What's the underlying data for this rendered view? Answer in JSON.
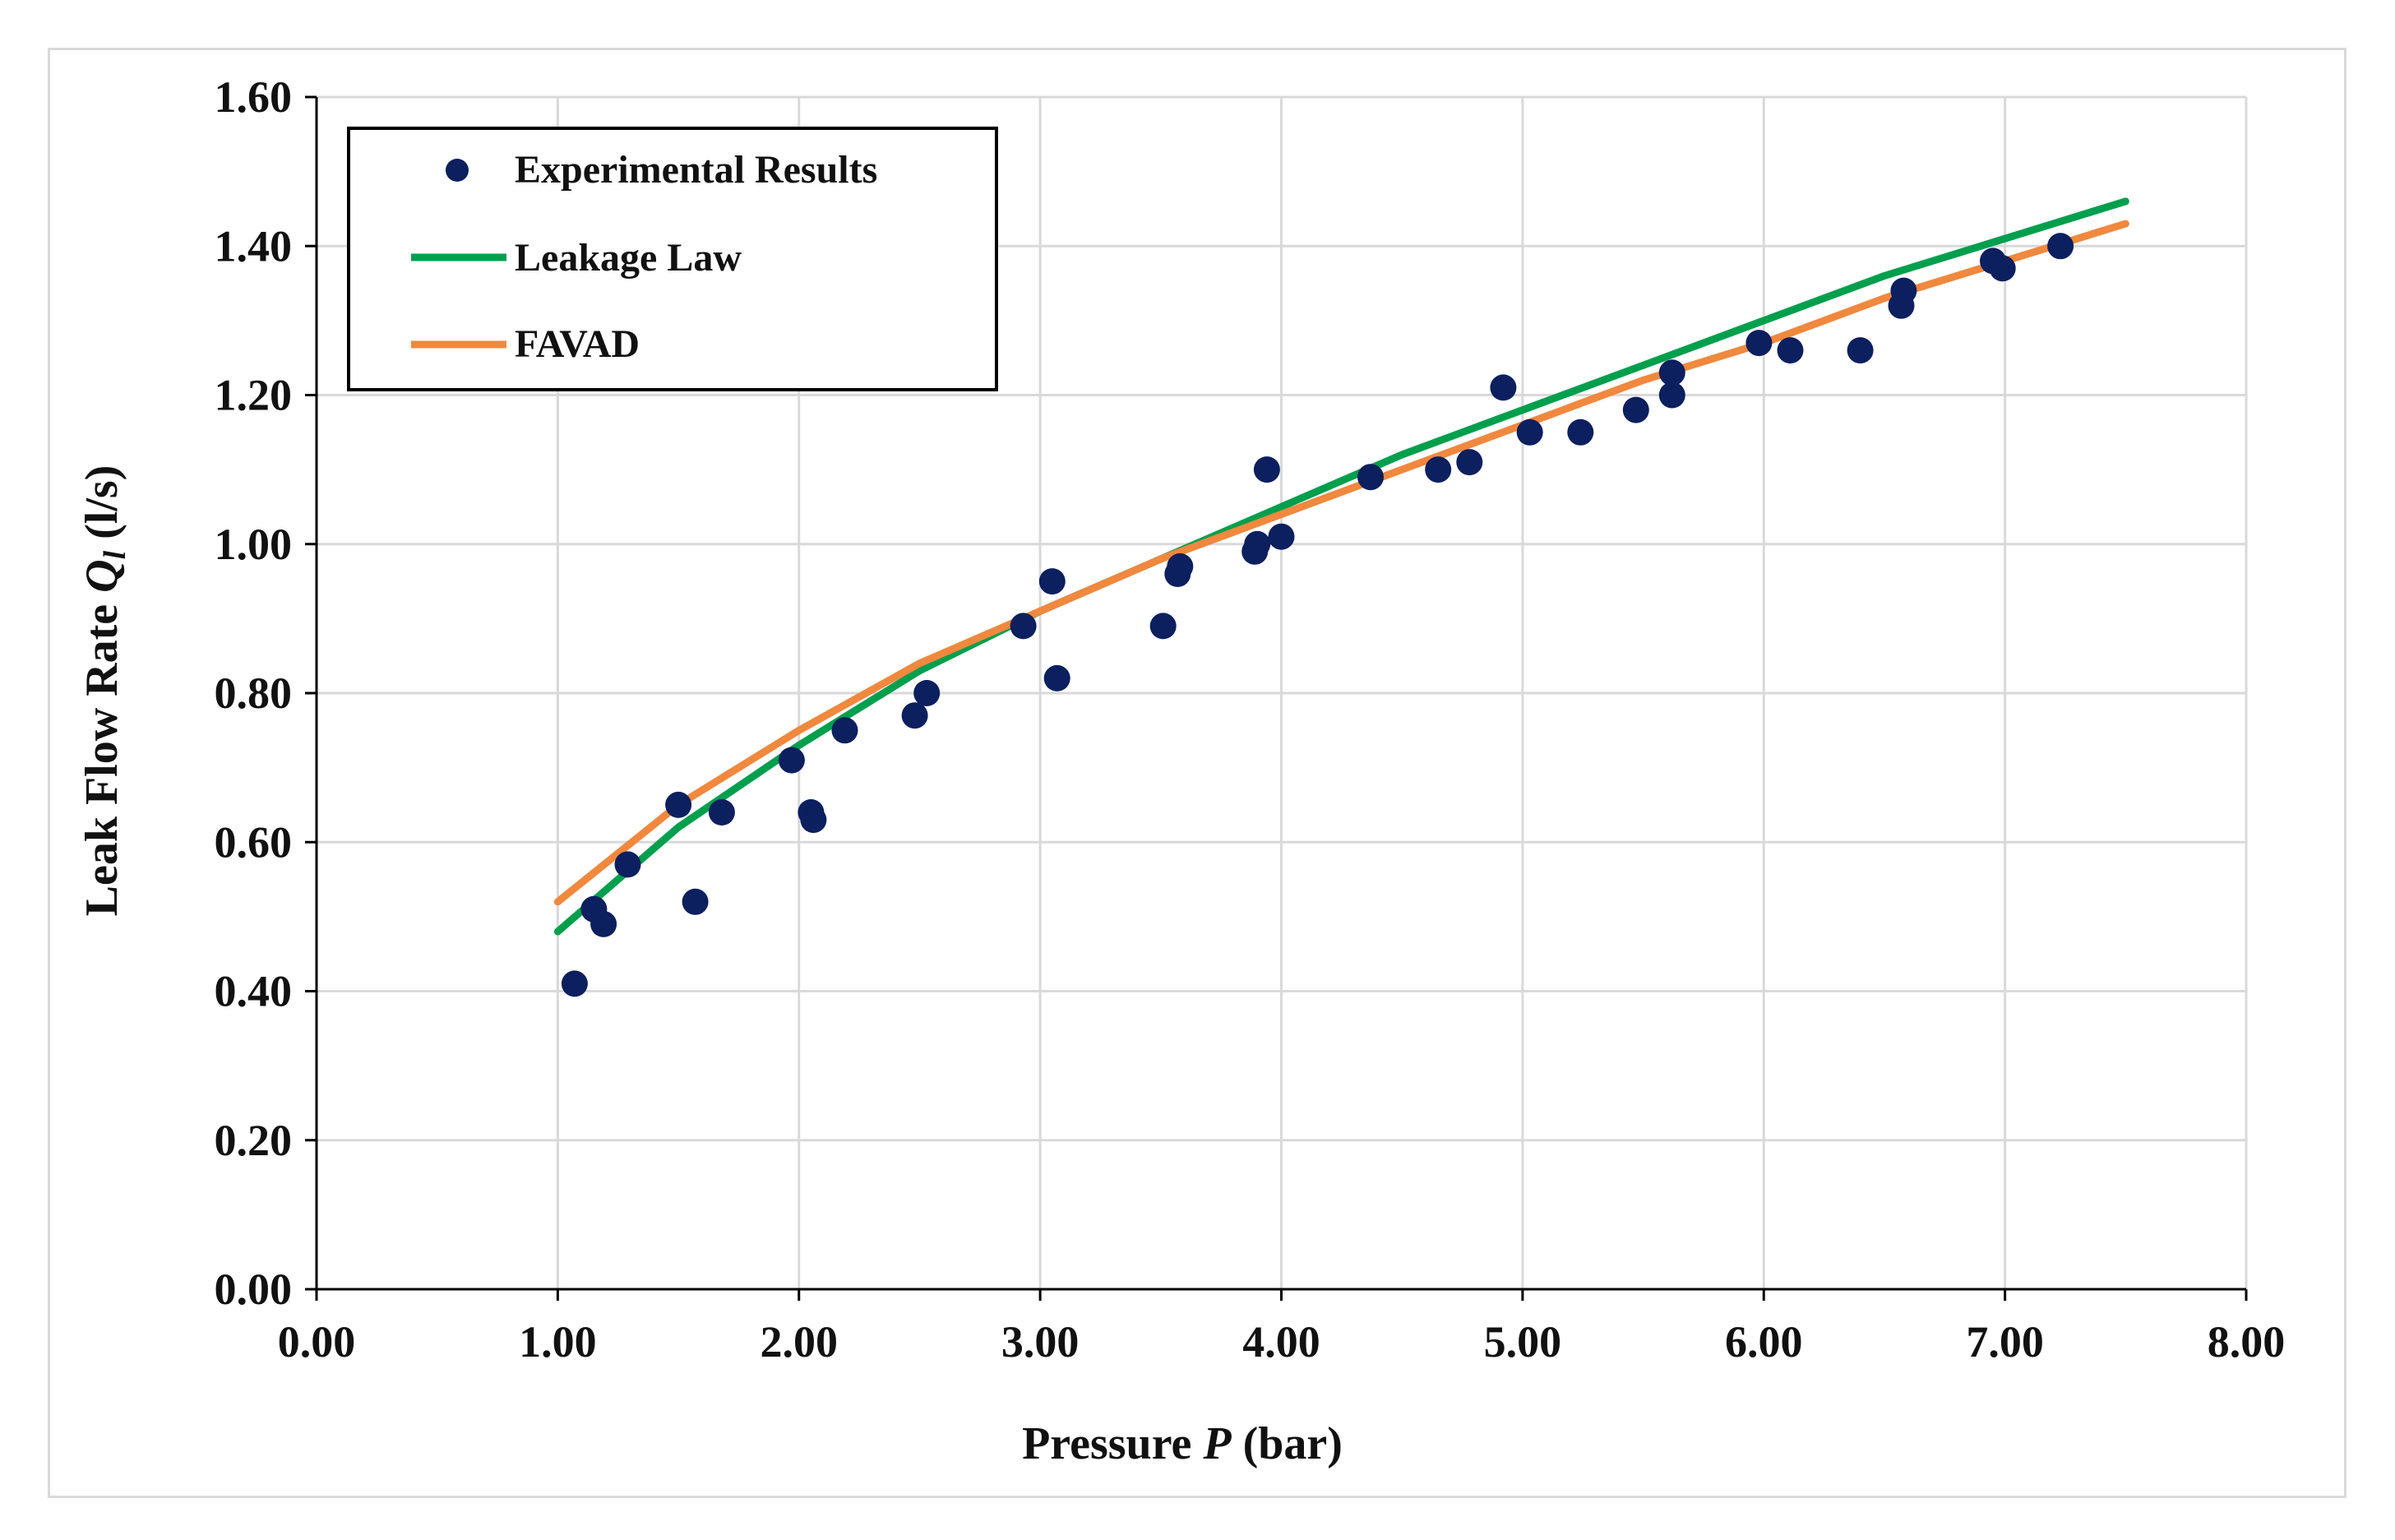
{
  "chart_data": {
    "type": "scatter",
    "xlabel": "Pressure P (bar)",
    "xlabel_parts": {
      "before": "Pressure ",
      "var": "P",
      "after": " (bar)"
    },
    "ylabel": "Leak Flow Rate Ql (l/s)",
    "ylabel_parts": {
      "before": "Leak Flow Rate ",
      "var": "Q",
      "sub": "l",
      "after": " (l/s)"
    },
    "xlim": [
      0,
      8
    ],
    "ylim": [
      0,
      1.6
    ],
    "x_ticks": [
      "0.00",
      "1.00",
      "2.00",
      "3.00",
      "4.00",
      "5.00",
      "6.00",
      "7.00",
      "8.00"
    ],
    "y_ticks": [
      "0.00",
      "0.20",
      "0.40",
      "0.60",
      "0.80",
      "1.00",
      "1.20",
      "1.40",
      "1.60"
    ],
    "grid": true,
    "legend_position": "top-left",
    "series": [
      {
        "name": "Experimental Results",
        "kind": "scatter",
        "color": "#0c1f5e",
        "points": [
          [
            1.07,
            0.41
          ],
          [
            1.15,
            0.51
          ],
          [
            1.19,
            0.49
          ],
          [
            1.29,
            0.57
          ],
          [
            1.5,
            0.65
          ],
          [
            1.57,
            0.52
          ],
          [
            1.68,
            0.64
          ],
          [
            1.97,
            0.71
          ],
          [
            2.05,
            0.64
          ],
          [
            2.06,
            0.63
          ],
          [
            2.19,
            0.75
          ],
          [
            2.48,
            0.77
          ],
          [
            2.53,
            0.8
          ],
          [
            2.93,
            0.89
          ],
          [
            3.05,
            0.95
          ],
          [
            3.07,
            0.82
          ],
          [
            3.51,
            0.89
          ],
          [
            3.57,
            0.96
          ],
          [
            3.58,
            0.97
          ],
          [
            3.89,
            0.99
          ],
          [
            3.9,
            1.0
          ],
          [
            3.94,
            1.1
          ],
          [
            4.0,
            1.01
          ],
          [
            4.37,
            1.09
          ],
          [
            4.65,
            1.1
          ],
          [
            4.78,
            1.11
          ],
          [
            4.92,
            1.21
          ],
          [
            5.03,
            1.15
          ],
          [
            5.24,
            1.15
          ],
          [
            5.47,
            1.18
          ],
          [
            5.62,
            1.2
          ],
          [
            5.62,
            1.23
          ],
          [
            5.98,
            1.27
          ],
          [
            6.11,
            1.26
          ],
          [
            6.4,
            1.26
          ],
          [
            6.57,
            1.32
          ],
          [
            6.58,
            1.34
          ],
          [
            6.95,
            1.38
          ],
          [
            6.99,
            1.37
          ],
          [
            7.23,
            1.4
          ]
        ]
      },
      {
        "name": "Leakage Law",
        "kind": "line",
        "color": "#009f4d",
        "x": [
          1.0,
          1.5,
          2.0,
          2.5,
          3.0,
          3.5,
          4.0,
          4.5,
          5.0,
          5.5,
          6.0,
          6.5,
          7.0,
          7.5
        ],
        "values": [
          0.48,
          0.62,
          0.73,
          0.83,
          0.91,
          0.98,
          1.05,
          1.12,
          1.18,
          1.24,
          1.3,
          1.36,
          1.41,
          1.46
        ]
      },
      {
        "name": "FAVAD",
        "kind": "line",
        "color": "#f0883e",
        "x": [
          1.0,
          1.5,
          2.0,
          2.5,
          3.0,
          3.5,
          4.0,
          4.5,
          5.0,
          5.5,
          6.0,
          6.5,
          7.0,
          7.5
        ],
        "values": [
          0.52,
          0.65,
          0.75,
          0.84,
          0.91,
          0.98,
          1.04,
          1.1,
          1.16,
          1.22,
          1.27,
          1.33,
          1.38,
          1.43
        ]
      }
    ]
  },
  "colors": {
    "grid": "#d9d9d9",
    "axis": "#000000",
    "frame": "#d9d9d9"
  }
}
